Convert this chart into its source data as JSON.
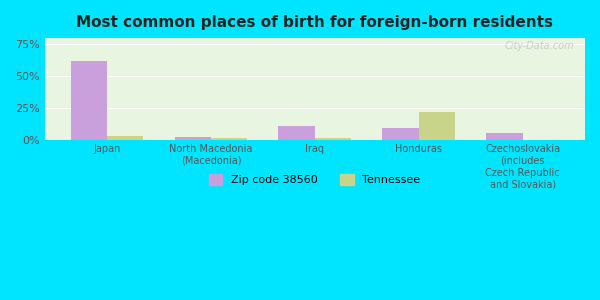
{
  "title": "Most common places of birth for foreign-born residents",
  "categories": [
    "Japan",
    "North Macedonia\n(Macedonia)",
    "Iraq",
    "Honduras",
    "Czechoslovakia\n(includes\nCzech Republic\nand Slovakia)"
  ],
  "zip_values": [
    62,
    2,
    11,
    9,
    5
  ],
  "tn_values": [
    3,
    1,
    1,
    22,
    0
  ],
  "zip_color": "#c9a0dc",
  "tn_color": "#c8d48a",
  "background_color": "#e8f5e0",
  "outer_background": "#00e5ff",
  "yticks": [
    0,
    25,
    50,
    75
  ],
  "ylabels": [
    "0%",
    "25%",
    "50%",
    "75%"
  ],
  "ylim": [
    0,
    80
  ],
  "bar_width": 0.35,
  "legend_zip": "Zip code 38560",
  "legend_tn": "Tennessee",
  "watermark": "City-Data.com"
}
